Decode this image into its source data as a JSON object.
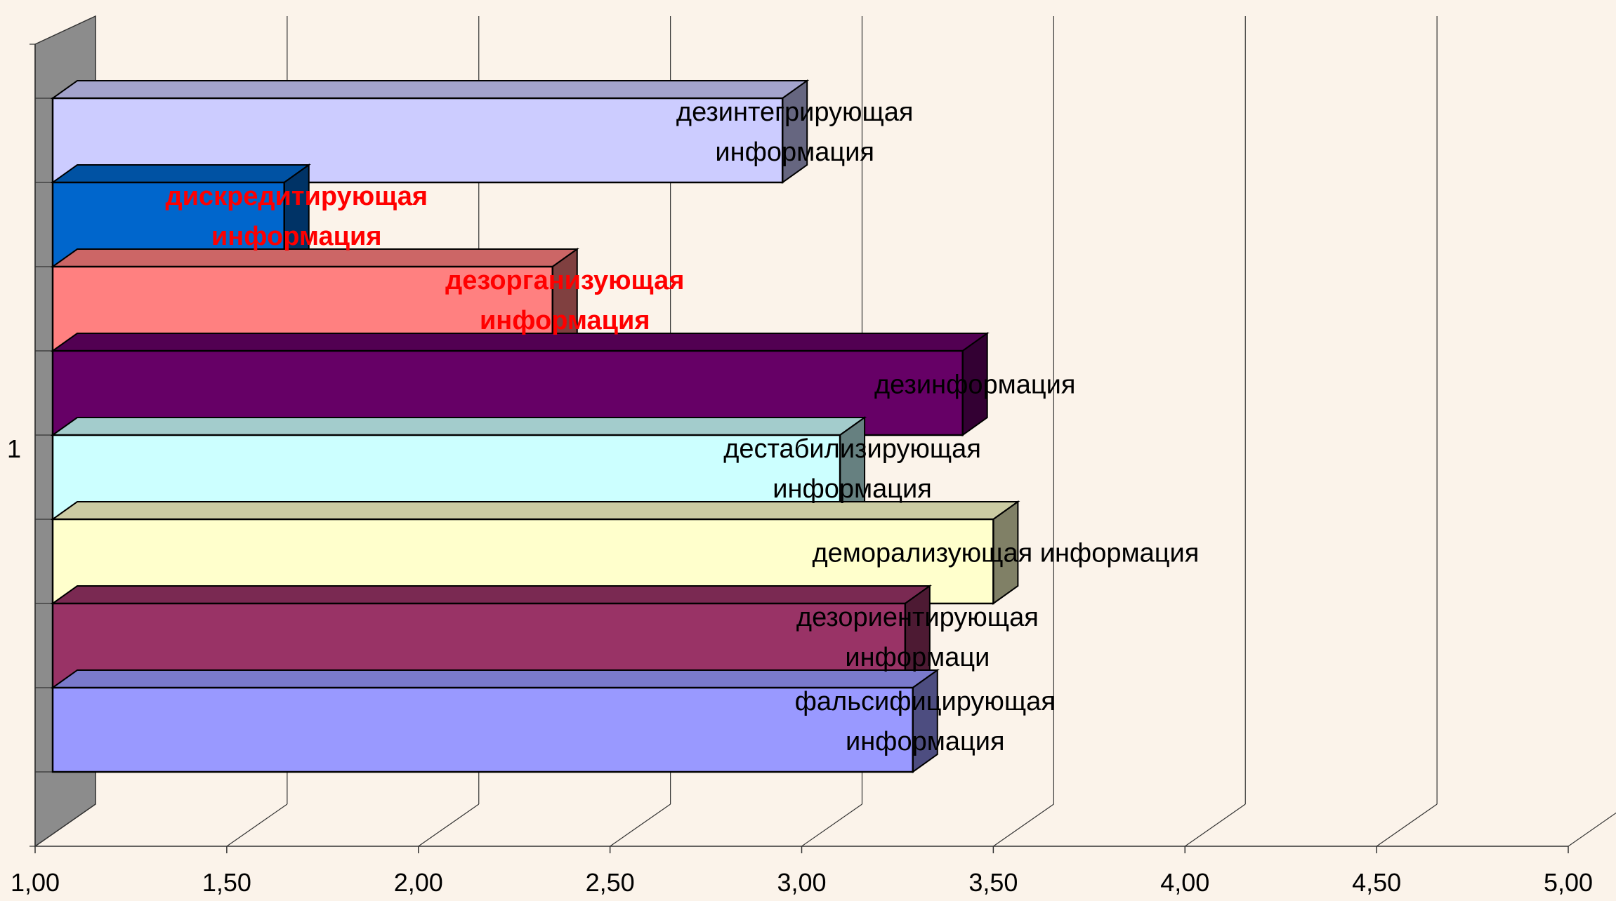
{
  "chart_data": {
    "type": "bar",
    "orientation": "horizontal",
    "style": "3d",
    "title": "",
    "xlabel": "",
    "ylabel": "",
    "xlim": [
      1.0,
      5.0
    ],
    "x_tick_labels": [
      "1,00",
      "1,50",
      "2,00",
      "2,50",
      "3,00",
      "3,50",
      "4,00",
      "4,50",
      "5,00"
    ],
    "category_label": "1",
    "grid": "vertical",
    "legend": "none",
    "series": [
      {
        "label_lines": [
          "дезинтегрирующая",
          "информация"
        ],
        "value": 2.95,
        "color": "#ccccff",
        "label_color": "#000000",
        "label_bold": false
      },
      {
        "label_lines": [
          "дискредитирующая",
          "информация"
        ],
        "value": 1.65,
        "color": "#0066cc",
        "label_color": "#ff0000",
        "label_bold": true
      },
      {
        "label_lines": [
          "дезорганизующая",
          "информация"
        ],
        "value": 2.35,
        "color": "#ff8080",
        "label_color": "#ff0000",
        "label_bold": true
      },
      {
        "label_lines": [
          "дезинформация"
        ],
        "value": 3.42,
        "color": "#660066",
        "label_color": "#000000",
        "label_bold": false
      },
      {
        "label_lines": [
          "дестабилизирующая",
          "информация"
        ],
        "value": 3.1,
        "color": "#ccffff",
        "label_color": "#000000",
        "label_bold": false
      },
      {
        "label_lines": [
          "деморализующая информация"
        ],
        "value": 3.5,
        "color": "#ffffcc",
        "label_color": "#000000",
        "label_bold": false
      },
      {
        "label_lines": [
          "дезориентирующая",
          "информаци"
        ],
        "value": 3.27,
        "color": "#993366",
        "label_color": "#000000",
        "label_bold": false
      },
      {
        "label_lines": [
          "фальсифицирующая",
          "информация"
        ],
        "value": 3.29,
        "color": "#9999ff",
        "label_color": "#000000",
        "label_bold": false
      }
    ]
  }
}
